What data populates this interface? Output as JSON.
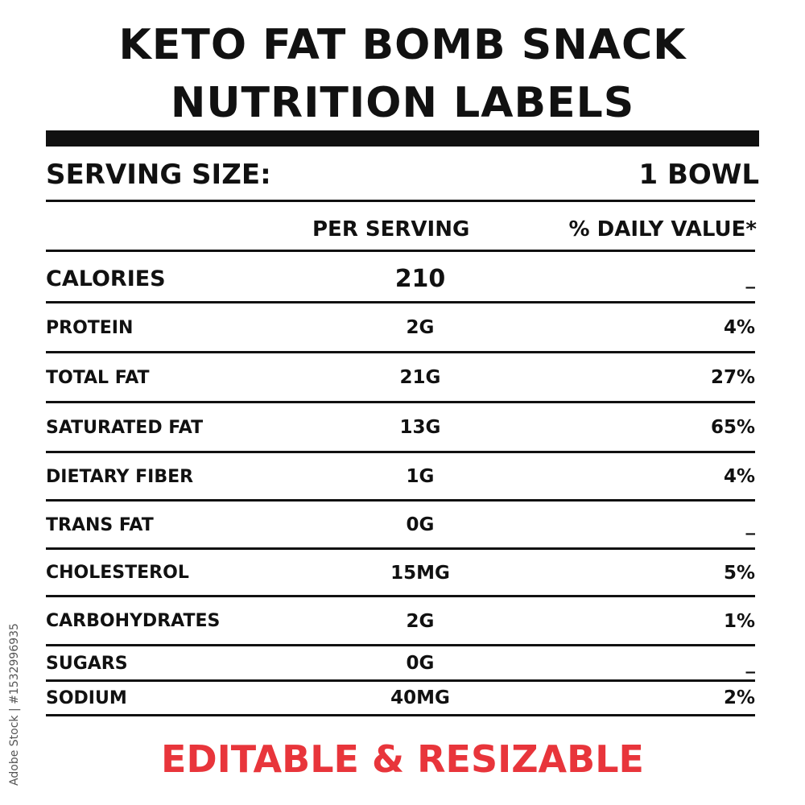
{
  "title": {
    "line1": "KETO FAT BOMB SNACK",
    "line2": "NUTRITION LABELS"
  },
  "serving": {
    "label": "SERVING SIZE:",
    "value": "1 BOWL"
  },
  "columns": {
    "per_serving": "PER SERVING",
    "daily_value": "% DAILY VALUE*"
  },
  "nutrients": [
    {
      "name": "CALORIES",
      "amount": "210",
      "dv": "_"
    },
    {
      "name": "PROTEIN",
      "amount": "2G",
      "dv": "4%"
    },
    {
      "name": "TOTAL FAT",
      "amount": "21G",
      "dv": "27%"
    },
    {
      "name": "SATURATED FAT",
      "amount": "13G",
      "dv": "65%"
    },
    {
      "name": "DIETARY FIBER",
      "amount": "1G",
      "dv": "4%"
    },
    {
      "name": "TRANS FAT",
      "amount": "0G",
      "dv": "_"
    },
    {
      "name": "CHOLESTEROL",
      "amount": "15MG",
      "dv": "5%"
    },
    {
      "name": "CARBOHYDRATES",
      "amount": "2G",
      "dv": "1%"
    },
    {
      "name": "SUGARS",
      "amount": "0G",
      "dv": "_"
    },
    {
      "name": "SODIUM",
      "amount": "40MG",
      "dv": "2%"
    }
  ],
  "footer": "EDITABLE & RESIZABLE",
  "stock_id": "Adobe Stock | #1532996935",
  "colors": {
    "text": "#111111",
    "accent": "#e8353b",
    "background": "#ffffff"
  }
}
